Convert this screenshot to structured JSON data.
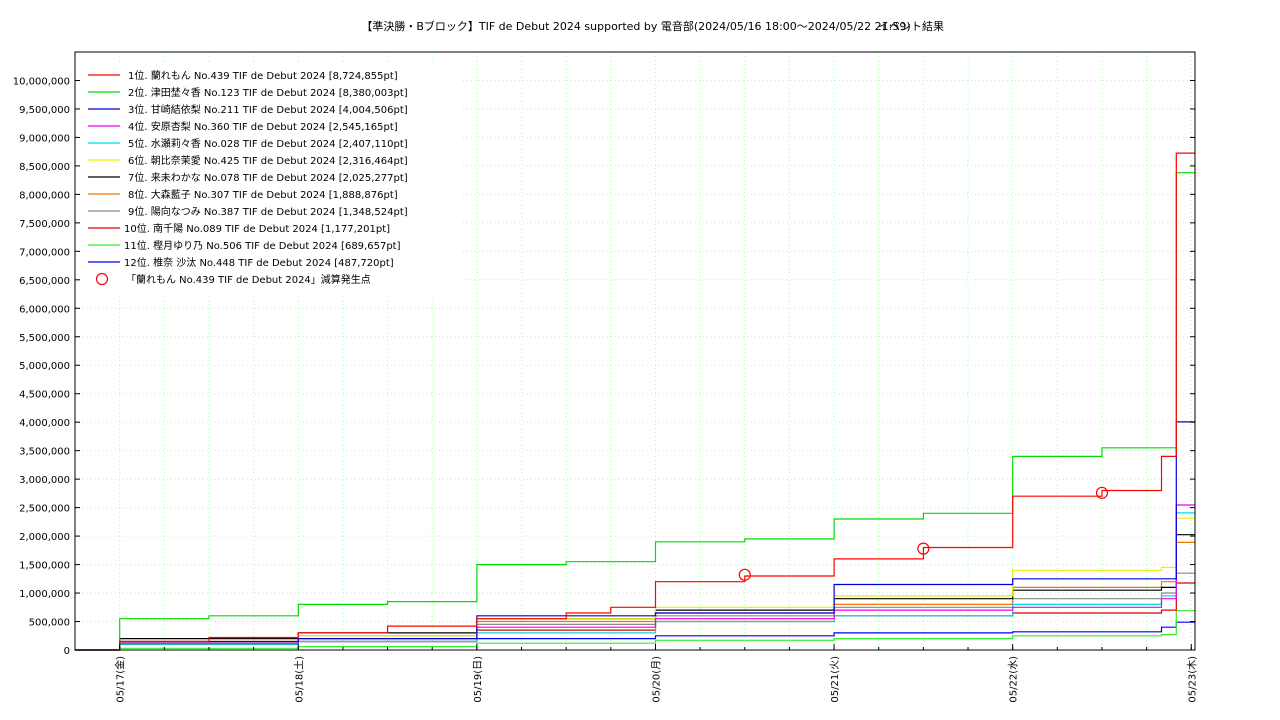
{
  "chart_data": {
    "type": "line",
    "title": "【準決勝・Bブロック】TIF de Debut 2024 supported by 電音部(2024/05/16 18:00～2024/05/22 21:59)",
    "subtitle": "イベント結果",
    "xlabel": "",
    "ylabel": "",
    "x_range": [
      "2024-05-16 18:00",
      "2024-05-23 00:30"
    ],
    "ylim": [
      0,
      10500000
    ],
    "grid": true,
    "legend_position": "top-left",
    "x_ticks": [
      "05/17(金)",
      "05/18(土)",
      "05/19(日)",
      "05/20(月)",
      "05/21(火)",
      "05/22(水)",
      "05/23(木)"
    ],
    "y_ticks": [
      "0",
      "500,000",
      "1,000,000",
      "1,500,000",
      "2,000,000",
      "2,500,000",
      "3,000,000",
      "3,500,000",
      "4,000,000",
      "4,500,000",
      "5,000,000",
      "5,500,000",
      "6,000,000",
      "6,500,000",
      "7,000,000",
      "7,500,000",
      "8,000,000",
      "8,500,000",
      "9,000,000",
      "9,500,000",
      "10,000,000"
    ],
    "series": [
      {
        "name": "1位. 蘭れもん No.439 TIF de Debut 2024 [8,724,855pt]",
        "color": "#ff0000",
        "x": [
          "2024-05-16 18:00",
          "2024-05-17 00:00",
          "2024-05-17 12:00",
          "2024-05-18 00:00",
          "2024-05-18 12:00",
          "2024-05-19 00:00",
          "2024-05-19 12:00",
          "2024-05-19 18:00",
          "2024-05-20 00:00",
          "2024-05-20 12:00",
          "2024-05-21 00:00",
          "2024-05-21 12:00",
          "2024-05-22 00:00",
          "2024-05-22 12:00",
          "2024-05-22 20:00",
          "2024-05-22 21:59",
          "2024-05-23 00:30"
        ],
        "y": [
          0,
          150000,
          220000,
          300000,
          420000,
          550000,
          650000,
          750000,
          1200000,
          1300000,
          1600000,
          1800000,
          2700000,
          2800000,
          3400000,
          8724855,
          8724855
        ]
      },
      {
        "name": "2位. 津田埜々香 No.123 TIF de Debut 2024 [8,380,003pt]",
        "color": "#00dd00",
        "x": [
          "2024-05-16 18:00",
          "2024-05-17 00:00",
          "2024-05-17 12:00",
          "2024-05-18 00:00",
          "2024-05-18 12:00",
          "2024-05-19 00:00",
          "2024-05-19 12:00",
          "2024-05-20 00:00",
          "2024-05-20 12:00",
          "2024-05-21 00:00",
          "2024-05-21 12:00",
          "2024-05-22 00:00",
          "2024-05-22 12:00",
          "2024-05-22 20:00",
          "2024-05-22 21:59",
          "2024-05-23 00:30"
        ],
        "y": [
          0,
          550000,
          600000,
          800000,
          850000,
          1500000,
          1550000,
          1900000,
          1950000,
          2300000,
          2400000,
          3400000,
          3550000,
          3550000,
          8380003,
          8380003
        ]
      },
      {
        "name": "3位. 甘崎結依梨 No.211 TIF de Debut 2024 [4,004,506pt]",
        "color": "#0000dd",
        "x": [
          "2024-05-16 18:00",
          "2024-05-17 00:00",
          "2024-05-18 00:00",
          "2024-05-19 00:00",
          "2024-05-20 00:00",
          "2024-05-21 00:00",
          "2024-05-22 00:00",
          "2024-05-22 20:00",
          "2024-05-22 21:59",
          "2024-05-23 00:30"
        ],
        "y": [
          0,
          150000,
          200000,
          600000,
          650000,
          1150000,
          1250000,
          1250000,
          4004506,
          4004506
        ]
      },
      {
        "name": "4位. 安原杏梨 No.360 TIF de Debut 2024 [2,545,165pt]",
        "color": "#ee00ee",
        "x": [
          "2024-05-16 18:00",
          "2024-05-17 00:00",
          "2024-05-18 00:00",
          "2024-05-19 00:00",
          "2024-05-20 00:00",
          "2024-05-21 00:00",
          "2024-05-22 00:00",
          "2024-05-22 20:00",
          "2024-05-22 21:59",
          "2024-05-23 00:30"
        ],
        "y": [
          0,
          120000,
          200000,
          400000,
          550000,
          700000,
          750000,
          900000,
          2545165,
          2545165
        ]
      },
      {
        "name": "5位. 水瀬莉々香 No.028 TIF de Debut 2024 [2,407,110pt]",
        "color": "#00dddd",
        "x": [
          "2024-05-16 18:00",
          "2024-05-17 00:00",
          "2024-05-18 00:00",
          "2024-05-19 00:00",
          "2024-05-20 00:00",
          "2024-05-21 00:00",
          "2024-05-22 00:00",
          "2024-05-22 20:00",
          "2024-05-22 21:59",
          "2024-05-23 00:30"
        ],
        "y": [
          0,
          100000,
          150000,
          300000,
          500000,
          600000,
          800000,
          950000,
          2407110,
          2407110
        ]
      },
      {
        "name": "6位. 朝比奈茉愛 No.425 TIF de Debut 2024 [2,316,464pt]",
        "color": "#eeee00",
        "x": [
          "2024-05-16 18:00",
          "2024-05-17 00:00",
          "2024-05-18 00:00",
          "2024-05-19 00:00",
          "2024-05-20 00:00",
          "2024-05-21 00:00",
          "2024-05-22 00:00",
          "2024-05-22 20:00",
          "2024-05-22 21:59",
          "2024-05-23 00:30"
        ],
        "y": [
          0,
          150000,
          250000,
          550000,
          750000,
          950000,
          1400000,
          1450000,
          2316464,
          2316464
        ]
      },
      {
        "name": "7位. 来未わかな No.078 TIF de Debut 2024 [2,025,277pt]",
        "color": "#000000",
        "x": [
          "2024-05-16 18:00",
          "2024-05-17 00:00",
          "2024-05-18 00:00",
          "2024-05-19 00:00",
          "2024-05-20 00:00",
          "2024-05-21 00:00",
          "2024-05-22 00:00",
          "2024-05-22 20:00",
          "2024-05-22 21:59",
          "2024-05-23 00:30"
        ],
        "y": [
          0,
          200000,
          300000,
          550000,
          700000,
          900000,
          1050000,
          1100000,
          2025277,
          2025277
        ]
      },
      {
        "name": "8位. 大森藍子 No.307 TIF de Debut 2024 [1,888,876pt]",
        "color": "#ee7700",
        "x": [
          "2024-05-16 18:00",
          "2024-05-17 00:00",
          "2024-05-18 00:00",
          "2024-05-19 00:00",
          "2024-05-20 00:00",
          "2024-05-21 00:00",
          "2024-05-22 00:00",
          "2024-05-22 20:00",
          "2024-05-22 21:59",
          "2024-05-23 00:30"
        ],
        "y": [
          0,
          150000,
          250000,
          500000,
          650000,
          800000,
          1100000,
          1200000,
          1888876,
          1888876
        ]
      },
      {
        "name": "9位. 陽向なつみ No.387 TIF de Debut 2024 [1,348,524pt]",
        "color": "#888888",
        "x": [
          "2024-05-16 18:00",
          "2024-05-17 00:00",
          "2024-05-18 00:00",
          "2024-05-19 00:00",
          "2024-05-20 00:00",
          "2024-05-21 00:00",
          "2024-05-22 00:00",
          "2024-05-22 20:00",
          "2024-05-22 21:59",
          "2024-05-23 00:30"
        ],
        "y": [
          0,
          120000,
          200000,
          450000,
          600000,
          750000,
          900000,
          1000000,
          1348524,
          1348524
        ]
      },
      {
        "name": "10位. 南千陽 No.089 TIF de Debut 2024 [1,177,201pt]",
        "color": "#dd0000",
        "x": [
          "2024-05-16 18:00",
          "2024-05-17 00:00",
          "2024-05-18 00:00",
          "2024-05-19 00:00",
          "2024-05-20 00:00",
          "2024-05-21 00:00",
          "2024-05-22 00:00",
          "2024-05-22 20:00",
          "2024-05-22 21:59",
          "2024-05-23 00:30"
        ],
        "y": [
          0,
          100000,
          150000,
          350000,
          500000,
          600000,
          650000,
          700000,
          1177201,
          1177201
        ]
      },
      {
        "name": "11位. 樫月ゆり乃 No.506 TIF de Debut 2024 [689,657pt]",
        "color": "#33ee33",
        "x": [
          "2024-05-16 18:00",
          "2024-05-17 00:00",
          "2024-05-18 00:00",
          "2024-05-19 00:00",
          "2024-05-20 00:00",
          "2024-05-21 00:00",
          "2024-05-22 00:00",
          "2024-05-22 20:00",
          "2024-05-22 21:59",
          "2024-05-23 00:30"
        ],
        "y": [
          0,
          30000,
          60000,
          120000,
          170000,
          200000,
          250000,
          270000,
          689657,
          689657
        ]
      },
      {
        "name": "12位. 椎奈 沙汰 No.448 TIF de Debut 2024 [487,720pt]",
        "color": "#0000ee",
        "x": [
          "2024-05-16 18:00",
          "2024-05-17 00:00",
          "2024-05-18 00:00",
          "2024-05-19 00:00",
          "2024-05-20 00:00",
          "2024-05-21 00:00",
          "2024-05-22 00:00",
          "2024-05-22 20:00",
          "2024-05-22 21:59",
          "2024-05-23 00:30"
        ],
        "y": [
          0,
          100000,
          150000,
          200000,
          250000,
          300000,
          320000,
          400000,
          487720,
          487720
        ]
      }
    ],
    "markers": {
      "name": "「蘭れもん No.439 TIF de Debut 2024」減算発生点",
      "color": "#ff0000",
      "x": [
        "2024-05-20 12:00",
        "2024-05-21 12:00",
        "2024-05-22 12:00"
      ],
      "y": [
        1320000,
        1780000,
        2760000
      ]
    }
  }
}
